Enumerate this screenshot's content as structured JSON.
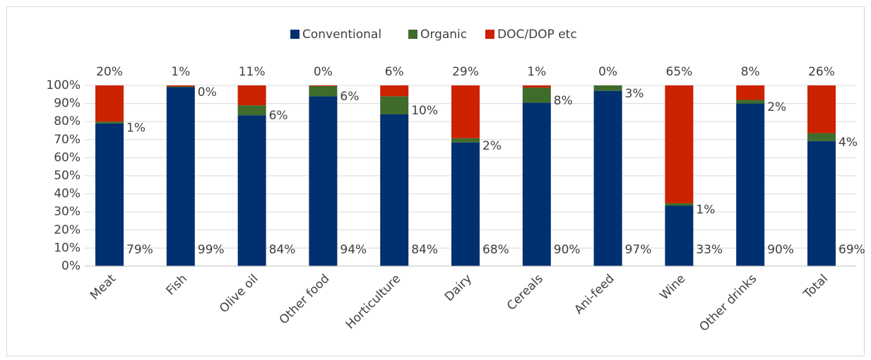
{
  "chart_data": {
    "type": "stacked_bar",
    "categories": [
      "Meat",
      "Fish",
      "Olive oil",
      "Other food",
      "Horticulture",
      "Dairy",
      "Cereals",
      "Ani-feed",
      "Wine",
      "Other drinks",
      "Total"
    ],
    "series": [
      {
        "name": "Conventional",
        "color": "#003070",
        "values": [
          79,
          99,
          83.5,
          94,
          84,
          68.4,
          90.4,
          97,
          33.4,
          90,
          69.2
        ],
        "value_labels": [
          "79%",
          "99%",
          "84%",
          "94%",
          "84%",
          "68%",
          "90%",
          "97%",
          "33%",
          "90%",
          "69%"
        ]
      },
      {
        "name": "Organic",
        "color": "#3f6b2b",
        "values": [
          1,
          0.4,
          5.5,
          5.6,
          10,
          2.4,
          8.4,
          3,
          1.4,
          2,
          4.4
        ],
        "value_labels": [
          "1%",
          "0%",
          "6%",
          "6%",
          "10%",
          "2%",
          "8%",
          "3%",
          "1%",
          "2%",
          "4%"
        ]
      },
      {
        "name": "DOC/DOP etc",
        "color": "#cc2200",
        "values": [
          20,
          0.6,
          11,
          0.4,
          6,
          29.2,
          1.2,
          0,
          65.2,
          8,
          26.4
        ],
        "value_labels": [
          "20%",
          "1%",
          "11%",
          "0%",
          "6%",
          "29%",
          "1%",
          "0%",
          "65%",
          "8%",
          "26%"
        ]
      }
    ],
    "ylim": [
      0,
      100
    ],
    "yticks": [
      {
        "value": 0,
        "label": "0%"
      },
      {
        "value": 10,
        "label": "10%"
      },
      {
        "value": 20,
        "label": "20%"
      },
      {
        "value": 30,
        "label": "30%"
      },
      {
        "value": 40,
        "label": "40%"
      },
      {
        "value": 50,
        "label": "50%"
      },
      {
        "value": 60,
        "label": "60%"
      },
      {
        "value": 70,
        "label": "70%"
      },
      {
        "value": 80,
        "label": "80%"
      },
      {
        "value": 90,
        "label": "90%"
      },
      {
        "value": 100,
        "label": "100%"
      }
    ],
    "grid": true,
    "legend": "top"
  }
}
